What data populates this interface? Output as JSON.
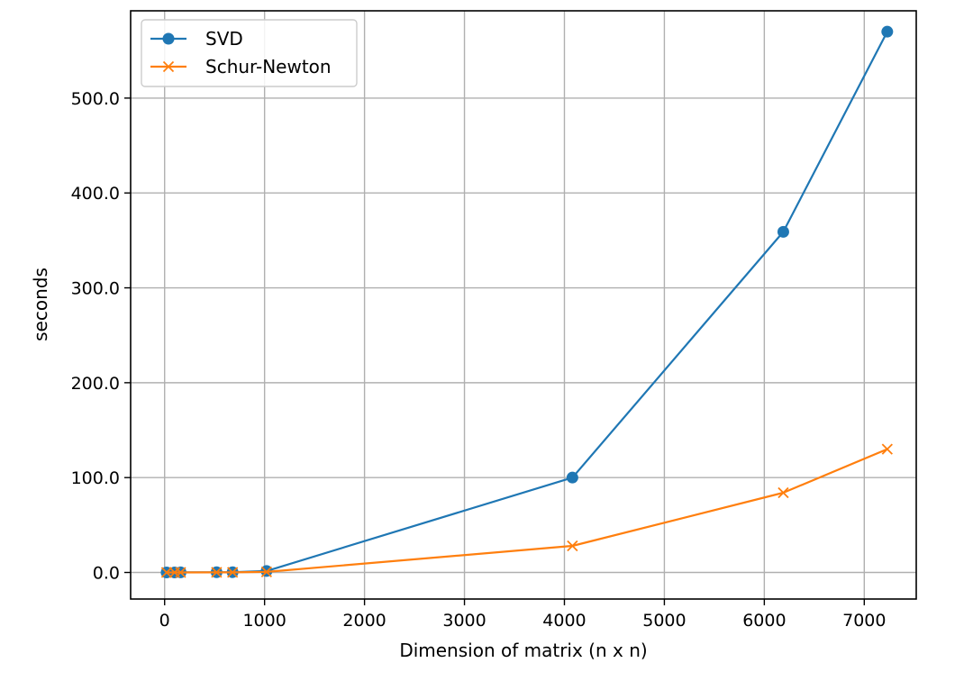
{
  "chart_data": {
    "type": "line",
    "title": "",
    "xlabel": "Dimension of matrix (n x n)",
    "ylabel": "seconds",
    "xlim": [
      -340,
      7520
    ],
    "ylim": [
      -28,
      592
    ],
    "xticks": [
      0,
      1000,
      2000,
      3000,
      4000,
      5000,
      6000,
      7000
    ],
    "xtick_labels": [
      "0",
      "1000",
      "2000",
      "3000",
      "4000",
      "5000",
      "6000",
      "7000"
    ],
    "yticks": [
      0,
      100,
      200,
      300,
      400,
      500
    ],
    "ytick_labels": [
      "0.0",
      "100.0",
      "200.0",
      "300.0",
      "400.0",
      "500.0"
    ],
    "grid": true,
    "legend_position": "top-left",
    "series": [
      {
        "name": "SVD",
        "color": "#1f77b4",
        "marker": "circle",
        "x": [
          20,
          100,
          160,
          520,
          680,
          1020,
          4080,
          6190,
          7230
        ],
        "y": [
          0.0,
          0.0,
          0.1,
          0.2,
          0.3,
          1.5,
          100.0,
          359.0,
          570.0
        ]
      },
      {
        "name": "Schur-Newton",
        "color": "#ff7f0e",
        "marker": "x",
        "x": [
          20,
          100,
          160,
          520,
          680,
          1020,
          4080,
          6190,
          7230
        ],
        "y": [
          0.0,
          0.0,
          0.0,
          0.1,
          0.1,
          0.6,
          28.0,
          84.0,
          130.0
        ]
      }
    ]
  }
}
